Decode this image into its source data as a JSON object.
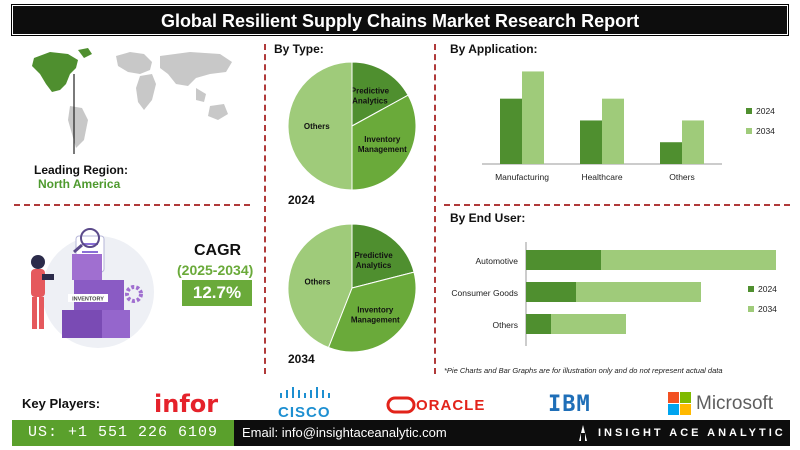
{
  "title": "Global Resilient Supply Chains Market Research Report",
  "leading_region": {
    "label": "Leading Region:",
    "value": "North America"
  },
  "cagr": {
    "title": "CAGR",
    "range": "(2025-2034)",
    "value": "12.7%"
  },
  "sections": {
    "by_type": "By Type:",
    "by_application": "By Application:",
    "by_end_user": "By End User:"
  },
  "note": "*Pie Charts and Bar Graphs are for illustration only and do not represent actual data",
  "key_players": {
    "label": "Key Players:",
    "logos": [
      "infor",
      "CISCO",
      "ORACLE",
      "IBM",
      "Microsoft"
    ]
  },
  "footer": {
    "phone": "US: +1 551 226 6109",
    "email": "Email: info@insightaceanalytic.com",
    "brand": "INSIGHT ACE ANALYTIC"
  },
  "illustration": {
    "inventory_label": "INVENTORY"
  },
  "colors": {
    "dark_green": "#4f8f2f",
    "light_green": "#9fcb7a",
    "mid_green": "#6aaa3a",
    "accent_red": "#b03a3a"
  },
  "chart_data": [
    {
      "type": "pie",
      "title": "2024",
      "labels": [
        "Predictive Analytics",
        "Inventory Management",
        "Others"
      ],
      "values": [
        17,
        33,
        50
      ],
      "colors": [
        "#4f8f2f",
        "#6aaa3a",
        "#9fcb7a"
      ]
    },
    {
      "type": "pie",
      "title": "2034",
      "labels": [
        "Predictive Analytics",
        "Inventory Management",
        "Others"
      ],
      "values": [
        21,
        35,
        44
      ],
      "colors": [
        "#4f8f2f",
        "#6aaa3a",
        "#9fcb7a"
      ]
    },
    {
      "type": "bar",
      "title": "By Application:",
      "categories": [
        "Manufacturing",
        "Healthcare",
        "Others"
      ],
      "series": [
        {
          "name": "2024",
          "values": [
            6,
            4,
            2
          ],
          "color": "#4f8f2f"
        },
        {
          "name": "2034",
          "values": [
            8.5,
            6,
            4
          ],
          "color": "#9fcb7a"
        }
      ],
      "ylim": [
        0,
        9
      ],
      "legend": "right"
    },
    {
      "type": "bar",
      "orientation": "horizontal",
      "title": "By End User:",
      "categories": [
        "Automotive",
        "Consumer Goods",
        "Others"
      ],
      "series": [
        {
          "name": "2024",
          "values": [
            3,
            2,
            1
          ],
          "color": "#4f8f2f"
        },
        {
          "name": "2034",
          "values": [
            7,
            5,
            3
          ],
          "color": "#9fcb7a"
        }
      ],
      "xlim": [
        0,
        8
      ],
      "legend": "right"
    }
  ]
}
